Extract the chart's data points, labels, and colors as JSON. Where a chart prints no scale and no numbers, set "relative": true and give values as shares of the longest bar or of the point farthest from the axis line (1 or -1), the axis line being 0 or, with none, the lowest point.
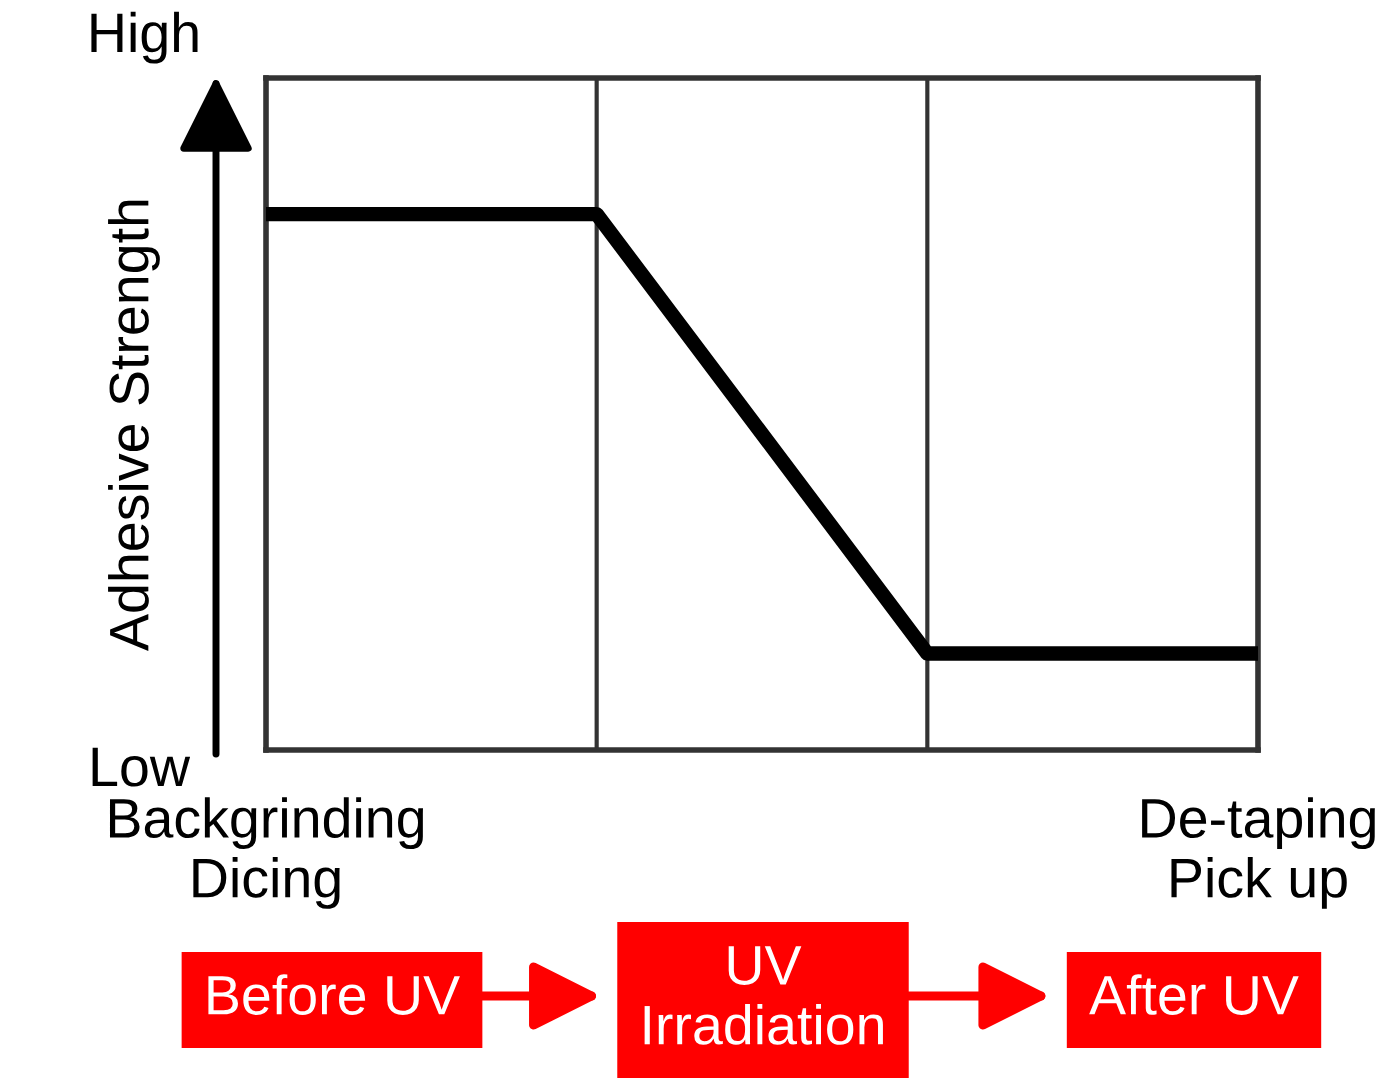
{
  "chart_data": {
    "type": "line",
    "ylabel": "Adhesive Strength",
    "categories": [
      "Backgrinding\nDicing",
      null,
      null,
      "De-taping\nPick up"
    ],
    "series": [
      {
        "color": "#000000",
        "values": [
          1,
          1,
          0.18,
          0.18
        ]
      }
    ],
    "relative": true,
    "grid": "x",
    "line_style": "solid",
    "annotations": [
      "High",
      "Low",
      "Before UV",
      "UV\nIrradiation",
      "After UV"
    ]
  }
}
